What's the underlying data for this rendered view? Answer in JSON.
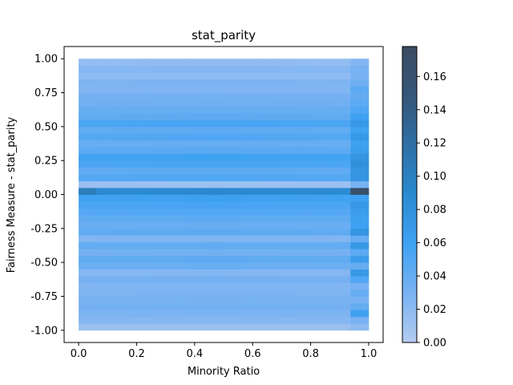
{
  "chart_data": {
    "type": "heatmap",
    "title": "stat_parity",
    "xlabel": "Minority Ratio",
    "ylabel": "Fairness Measure - stat_parity",
    "xlim": [
      -0.05,
      1.05
    ],
    "ylim": [
      -1.09,
      1.09
    ],
    "x_ticks": [
      "0.0",
      "0.2",
      "0.4",
      "0.6",
      "0.8",
      "1.0"
    ],
    "y_ticks": [
      "-1.00",
      "-0.75",
      "-0.50",
      "-0.25",
      "0.00",
      "0.25",
      "0.50",
      "0.75",
      "1.00"
    ],
    "colorbar": {
      "range": [
        0.0,
        0.178
      ],
      "ticks": [
        "0.00",
        "0.02",
        "0.04",
        "0.06",
        "0.08",
        "0.10",
        "0.12",
        "0.14",
        "0.16"
      ],
      "colors": [
        "#b3cbf0",
        "#79b2f2",
        "#3fa2f3",
        "#2a8ad0",
        "#2f6fa5",
        "#36577a",
        "#3a4b62"
      ]
    },
    "x_bins": [
      0.0,
      0.0625,
      0.125,
      0.1875,
      0.25,
      0.3125,
      0.375,
      0.4375,
      0.5,
      0.5625,
      0.625,
      0.6875,
      0.75,
      0.8125,
      0.875,
      0.9375
    ],
    "bin_width_x": 0.0625,
    "y_bins": [
      -1.0,
      -0.95,
      -0.9,
      -0.85,
      -0.8,
      -0.75,
      -0.7,
      -0.65,
      -0.6,
      -0.55,
      -0.5,
      -0.45,
      -0.4,
      -0.35,
      -0.3,
      -0.25,
      -0.2,
      -0.15,
      -0.1,
      -0.05,
      0.0,
      0.05,
      0.1,
      0.15,
      0.2,
      0.25,
      0.3,
      0.35,
      0.4,
      0.45,
      0.5,
      0.55,
      0.6,
      0.65,
      0.7,
      0.75,
      0.8,
      0.85,
      0.9,
      0.95
    ],
    "bin_width_y": 0.05,
    "row_base": [
      0.012,
      0.022,
      0.026,
      0.03,
      0.028,
      0.026,
      0.024,
      0.03,
      0.022,
      0.034,
      0.04,
      0.03,
      0.038,
      0.024,
      0.04,
      0.035,
      0.04,
      0.046,
      0.05,
      0.056,
      0.082,
      0.012,
      0.046,
      0.04,
      0.05,
      0.055,
      0.042,
      0.036,
      0.046,
      0.04,
      0.05,
      0.04,
      0.036,
      0.032,
      0.03,
      0.024,
      0.026,
      0.018,
      0.022,
      0.016
    ],
    "last_col": [
      0.02,
      0.03,
      0.06,
      0.04,
      0.03,
      0.04,
      0.03,
      0.05,
      0.07,
      0.04,
      0.065,
      0.045,
      0.07,
      0.04,
      0.075,
      0.06,
      0.06,
      0.065,
      0.07,
      0.06,
      0.17,
      0.03,
      0.075,
      0.075,
      0.08,
      0.075,
      0.065,
      0.06,
      0.07,
      0.06,
      0.07,
      0.06,
      0.05,
      0.045,
      0.04,
      0.045,
      0.035,
      0.03,
      0.03,
      0.025
    ],
    "grid": false
  }
}
